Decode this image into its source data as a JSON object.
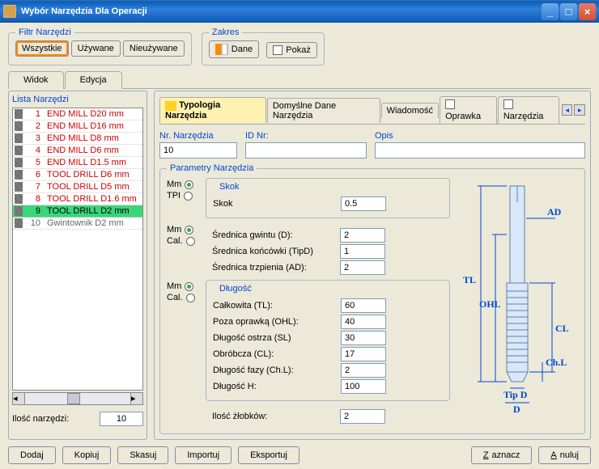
{
  "title": "Wybór Narzędzia Dla Operacji",
  "filterSet": {
    "legend": "Filtr Narzędzi",
    "all": "Wszystkie",
    "used": "Używane",
    "unused": "Nieużywane"
  },
  "rangeSet": {
    "legend": "Zakres",
    "dane": "Dane",
    "pokaz": "Pokaż"
  },
  "mainTabs": {
    "view": "Widok",
    "edit": "Edycja"
  },
  "listHead": "Lista  Narzędzi",
  "tools": [
    {
      "n": "1",
      "name": "END MILL  D20 mm"
    },
    {
      "n": "2",
      "name": "END MILL  D16 mm"
    },
    {
      "n": "3",
      "name": "END MILL  D8 mm"
    },
    {
      "n": "4",
      "name": "END MILL  D6 mm"
    },
    {
      "n": "5",
      "name": "END MILL  D1.5 mm"
    },
    {
      "n": "6",
      "name": "TOOL DRILL  D6 mm"
    },
    {
      "n": "7",
      "name": "TOOL DRILL  D5 mm"
    },
    {
      "n": "8",
      "name": "TOOL DRILL  D1.6 mm"
    },
    {
      "n": "9",
      "name": "TOOL DRILL  D2 mm"
    },
    {
      "n": "10",
      "name": "Gwintownik  D2 mm"
    }
  ],
  "selectedIdx": 8,
  "countLabel": "Ilość narzędzi:",
  "countVal": "10",
  "subtabs": {
    "typ": "Typologia Narzędzia",
    "def": "Domyślne Dane Narzędzia",
    "wiad": "Wiadomość",
    "oprawka": "Oprawka",
    "narz": "Narzędzia"
  },
  "hdr": {
    "nr": "Nr. Narzędzia",
    "nrVal": "10",
    "id": "ID Nr:",
    "idVal": "",
    "opis": "Opis",
    "opisVal": ""
  },
  "params": {
    "legend": "Parametry Narzędzia",
    "units": {
      "mm": "Mm",
      "tpi": "TPI",
      "cal": "Cal."
    },
    "skok": {
      "legend": "Skok",
      "label": "Skok",
      "val": "0.5"
    },
    "dims": {
      "d": "Średnica gwintu (D):",
      "dVal": "2",
      "tipd": "Średnica końcówki (TipD)",
      "tipdVal": "1",
      "ad": "Średnica trzpienia (AD):",
      "adVal": "2"
    },
    "len": {
      "legend": "Długość",
      "tl": "Całkowita (TL):",
      "tlVal": "60",
      "ohl": "Poza oprawką (OHL):",
      "ohlVal": "40",
      "sl": "Długość ostrza (SL)",
      "slVal": "30",
      "cl": "Obróbcza (CL):",
      "clVal": "17",
      "chl": "Długość fazy (Ch.L):",
      "chlVal": "2",
      "h": "Długość H:",
      "hVal": "100",
      "slots": "Ilość żłobków:",
      "slotsVal": "2"
    }
  },
  "diag": {
    "ad": "AD",
    "tl": "TL",
    "ohl": "OHL",
    "cl": "CL",
    "chl": "Ch.L",
    "tipd": "Tip D",
    "d": "D"
  },
  "btns": {
    "dodaj": "Dodaj",
    "kopiuj": "Kopiuj",
    "skasuj": "Skasuj",
    "importuj": "Importuj",
    "eksportuj": "Eksportuj",
    "zaznacz": "Zaznacz",
    "anuluj": "Anuluj"
  }
}
